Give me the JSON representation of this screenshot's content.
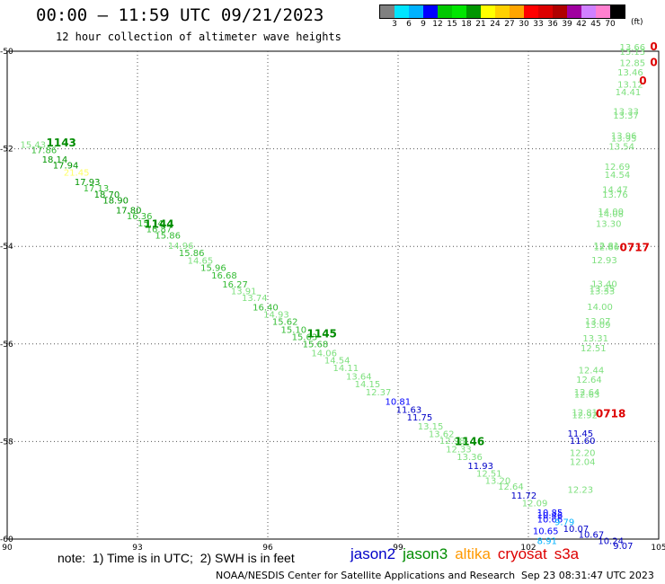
{
  "header": {
    "title": "00:00 – 11:59 UTC 09/21/2023",
    "subtitle": "12 hour collection of altimeter wave heights"
  },
  "legend": {
    "colors": [
      "#808080",
      "#00e5ff",
      "#00b2ff",
      "#0000ff",
      "#00c800",
      "#00e600",
      "#009600",
      "#ffff00",
      "#ffd000",
      "#ffa500",
      "#ff0000",
      "#dc0000",
      "#b00000",
      "#a000a0",
      "#d080ff",
      "#ff80d0",
      "#000000"
    ],
    "labels": [
      "3",
      "6",
      "9",
      "12",
      "15",
      "18",
      "21",
      "24",
      "27",
      "30",
      "33",
      "36",
      "39",
      "42",
      "45",
      "70"
    ],
    "units": "(ft)"
  },
  "axes": {
    "x_ticks": [
      "90",
      "93",
      "96",
      "99",
      "102",
      "105"
    ],
    "y_ticks": [
      "-50",
      "-52",
      "-54",
      "-56",
      "-58",
      "-60"
    ]
  },
  "orbit_labels": [
    "1143",
    "1144",
    "1145",
    "1146",
    "0717",
    "0718"
  ],
  "footer": {
    "note": "note:  1) Time is in UTC;  2) SWH is in feet",
    "satellites": [
      {
        "name": "jason2",
        "color": "#0000c8"
      },
      {
        "name": "jason3",
        "color": "#008c00"
      },
      {
        "name": "altika",
        "color": "#ff9900"
      },
      {
        "name": "cryosat",
        "color": "#dd0000"
      },
      {
        "name": "s3a",
        "color": "#dd0000"
      }
    ],
    "credit": "NOAA/NESDIS Center for Satellite Applications and Research",
    "generated": "Sep 23 08:31:47 UTC 2023"
  },
  "map_data": {
    "extent": {
      "lon": [
        90,
        105
      ],
      "lat": [
        -60,
        -50
      ]
    },
    "track_main": [
      [
        "15.43",
        90.3,
        -51.98,
        "#7ee07e"
      ],
      [
        "17.86",
        90.55,
        -52.09,
        "#33bb33"
      ],
      [
        "18.14",
        90.8,
        -52.28,
        "#009600"
      ],
      [
        "17.94",
        91.05,
        -52.4,
        "#009600"
      ],
      [
        "21.45",
        91.3,
        -52.55,
        "#ffff66"
      ],
      [
        "17.93",
        91.55,
        -52.74,
        "#009600"
      ],
      [
        "17.13",
        91.75,
        -52.87,
        "#33bb33"
      ],
      [
        "18.70",
        92.0,
        -53.0,
        "#009600"
      ],
      [
        "18.90",
        92.2,
        -53.12,
        "#009600"
      ],
      [
        "17.80",
        92.5,
        -53.32,
        "#009600"
      ],
      [
        "16.36",
        92.75,
        -53.44,
        "#33bb33"
      ],
      [
        "15.14",
        93.0,
        -53.59,
        "#33bb33"
      ],
      [
        "16.87",
        93.2,
        -53.71,
        "#33bb33"
      ],
      [
        "15.86",
        93.4,
        -53.84,
        "#33bb33"
      ],
      [
        "14.96",
        93.7,
        -54.05,
        "#7ee07e"
      ],
      [
        "15.86",
        93.95,
        -54.2,
        "#33bb33"
      ],
      [
        "14.65",
        94.15,
        -54.36,
        "#7ee07e"
      ],
      [
        "15.96",
        94.45,
        -54.5,
        "#33bb33"
      ],
      [
        "16.68",
        94.7,
        -54.66,
        "#33bb33"
      ],
      [
        "16.27",
        94.95,
        -54.84,
        "#33bb33"
      ],
      [
        "13.91",
        95.15,
        -54.98,
        "#7ee07e"
      ],
      [
        "13.74",
        95.4,
        -55.12,
        "#7ee07e"
      ],
      [
        "16.40",
        95.65,
        -55.31,
        "#33bb33"
      ],
      [
        "14.93",
        95.9,
        -55.46,
        "#7ee07e"
      ],
      [
        "15.62",
        96.1,
        -55.61,
        "#33bb33"
      ],
      [
        "15.10",
        96.3,
        -55.77,
        "#33bb33"
      ],
      [
        "15.63",
        96.55,
        -55.92,
        "#33bb33"
      ],
      [
        "15.68",
        96.8,
        -56.07,
        "#33bb33"
      ],
      [
        "14.06",
        97.0,
        -56.25,
        "#7ee07e"
      ],
      [
        "14.54",
        97.3,
        -56.4,
        "#7ee07e"
      ],
      [
        "14.11",
        97.5,
        -56.56,
        "#7ee07e"
      ],
      [
        "13.64",
        97.8,
        -56.73,
        "#7ee07e"
      ],
      [
        "14.15",
        98.0,
        -56.89,
        "#7ee07e"
      ],
      [
        "12.37",
        98.25,
        -57.05,
        "#7ee07e"
      ],
      [
        "10.81",
        98.7,
        -57.25,
        "#0000ff"
      ],
      [
        "11.63",
        98.95,
        -57.41,
        "#0000c8"
      ],
      [
        "11.75",
        99.2,
        -57.57,
        "#0000c8"
      ],
      [
        "13.15",
        99.45,
        -57.75,
        "#7ee07e"
      ],
      [
        "13.62",
        99.7,
        -57.91,
        "#7ee07e"
      ],
      [
        "12.98",
        99.95,
        -58.05,
        "#7ee07e"
      ],
      [
        "12.33",
        100.1,
        -58.22,
        "#7ee07e"
      ],
      [
        "13.36",
        100.35,
        -58.38,
        "#7ee07e"
      ],
      [
        "11.93",
        100.6,
        -58.56,
        "#0000c8"
      ],
      [
        "12.51",
        100.8,
        -58.72,
        "#7ee07e"
      ],
      [
        "13.20",
        101.0,
        -58.87,
        "#7ee07e"
      ],
      [
        "12.64",
        101.3,
        -58.99,
        "#7ee07e"
      ],
      [
        "11.72",
        101.6,
        -59.17,
        "#0000c8"
      ],
      [
        "12.09",
        101.85,
        -59.33,
        "#7ee07e"
      ]
    ],
    "track_low": [
      [
        "10.85",
        102.2,
        -59.52,
        "#0000ff"
      ],
      [
        "10.46",
        102.2,
        -59.58,
        "#0000ff"
      ],
      [
        "10.66",
        102.2,
        -59.66,
        "#0000ff"
      ],
      [
        "9.79",
        102.6,
        -59.71,
        "#00b2ff"
      ],
      [
        "10.65",
        102.1,
        -59.9,
        "#0000ff"
      ],
      [
        "10.07",
        102.8,
        -59.85,
        "#0000c8"
      ],
      [
        "10.67",
        103.15,
        -59.97,
        "#0000c8"
      ],
      [
        "8.91",
        102.2,
        -60.1,
        "#00b2ff"
      ],
      [
        "10.24",
        103.6,
        -60.1,
        "#0000c8"
      ],
      [
        "9.07",
        103.95,
        -60.2,
        "#0000c8"
      ]
    ],
    "track_east": [
      [
        "13.66",
        104.1,
        -49.98
      ],
      [
        "13.13",
        104.1,
        -50.07
      ],
      [
        "12.85",
        104.1,
        -50.3
      ],
      [
        "13.46",
        104.05,
        -50.5
      ],
      [
        "13.12",
        104.05,
        -50.75
      ],
      [
        "14.41",
        104.0,
        -50.9
      ],
      [
        "13.33",
        103.95,
        -51.3
      ],
      [
        "13.37",
        103.95,
        -51.38
      ],
      [
        "13.96",
        103.9,
        -51.8
      ],
      [
        "13.95",
        103.9,
        -51.85
      ],
      [
        "13.54",
        103.85,
        -52.02
      ],
      [
        "12.69",
        103.75,
        -52.43
      ],
      [
        "14.54",
        103.75,
        -52.6
      ],
      [
        "14.47",
        103.7,
        -52.9
      ],
      [
        "13.76",
        103.7,
        -53.0
      ],
      [
        "14.00",
        103.6,
        -53.35
      ],
      [
        "14.08",
        103.6,
        -53.4
      ],
      [
        "13.30",
        103.55,
        -53.6
      ],
      [
        "12.81",
        103.5,
        -54.05
      ],
      [
        "12.86",
        103.5,
        -54.08
      ],
      [
        "12.93",
        103.45,
        -54.35
      ],
      [
        "13.40",
        103.45,
        -54.83
      ],
      [
        "13.25",
        103.4,
        -54.93
      ],
      [
        "13.33",
        103.4,
        -54.98
      ],
      [
        "14.00",
        103.35,
        -55.3
      ],
      [
        "13.07",
        103.3,
        -55.6
      ],
      [
        "13.09",
        103.3,
        -55.67
      ],
      [
        "13.31",
        103.25,
        -55.95
      ],
      [
        "12.51",
        103.2,
        -56.15
      ],
      [
        "12.44",
        103.15,
        -56.6
      ],
      [
        "12.64",
        103.1,
        -56.8
      ],
      [
        "12.64",
        103.05,
        -57.05
      ],
      [
        "12.63",
        103.05,
        -57.1
      ],
      [
        "12.81",
        103.0,
        -57.47
      ],
      [
        "12.92",
        103.0,
        -57.52
      ],
      [
        "12.20",
        102.95,
        -58.3
      ],
      [
        "12.04",
        102.95,
        -58.48
      ],
      [
        "12.23",
        102.9,
        -59.05
      ]
    ],
    "track_east_blue": [
      [
        "11.45",
        102.9,
        -57.9
      ],
      [
        "11.60",
        102.95,
        -58.05
      ]
    ],
    "orbit_positions": [
      [
        90.9,
        -51.95,
        "#008c00"
      ],
      [
        93.15,
        -53.62,
        "#008c00"
      ],
      [
        96.9,
        -55.87,
        "#008c00"
      ],
      [
        100.3,
        -58.08,
        "#008c00"
      ],
      [
        104.1,
        -54.1,
        "#dd0000"
      ],
      [
        103.55,
        -57.5,
        "#dd0000"
      ]
    ],
    "red_marks": [
      [
        "0",
        104.8,
        -49.98
      ],
      [
        "0",
        104.8,
        -50.3
      ],
      [
        "0",
        104.55,
        -50.68
      ]
    ]
  }
}
